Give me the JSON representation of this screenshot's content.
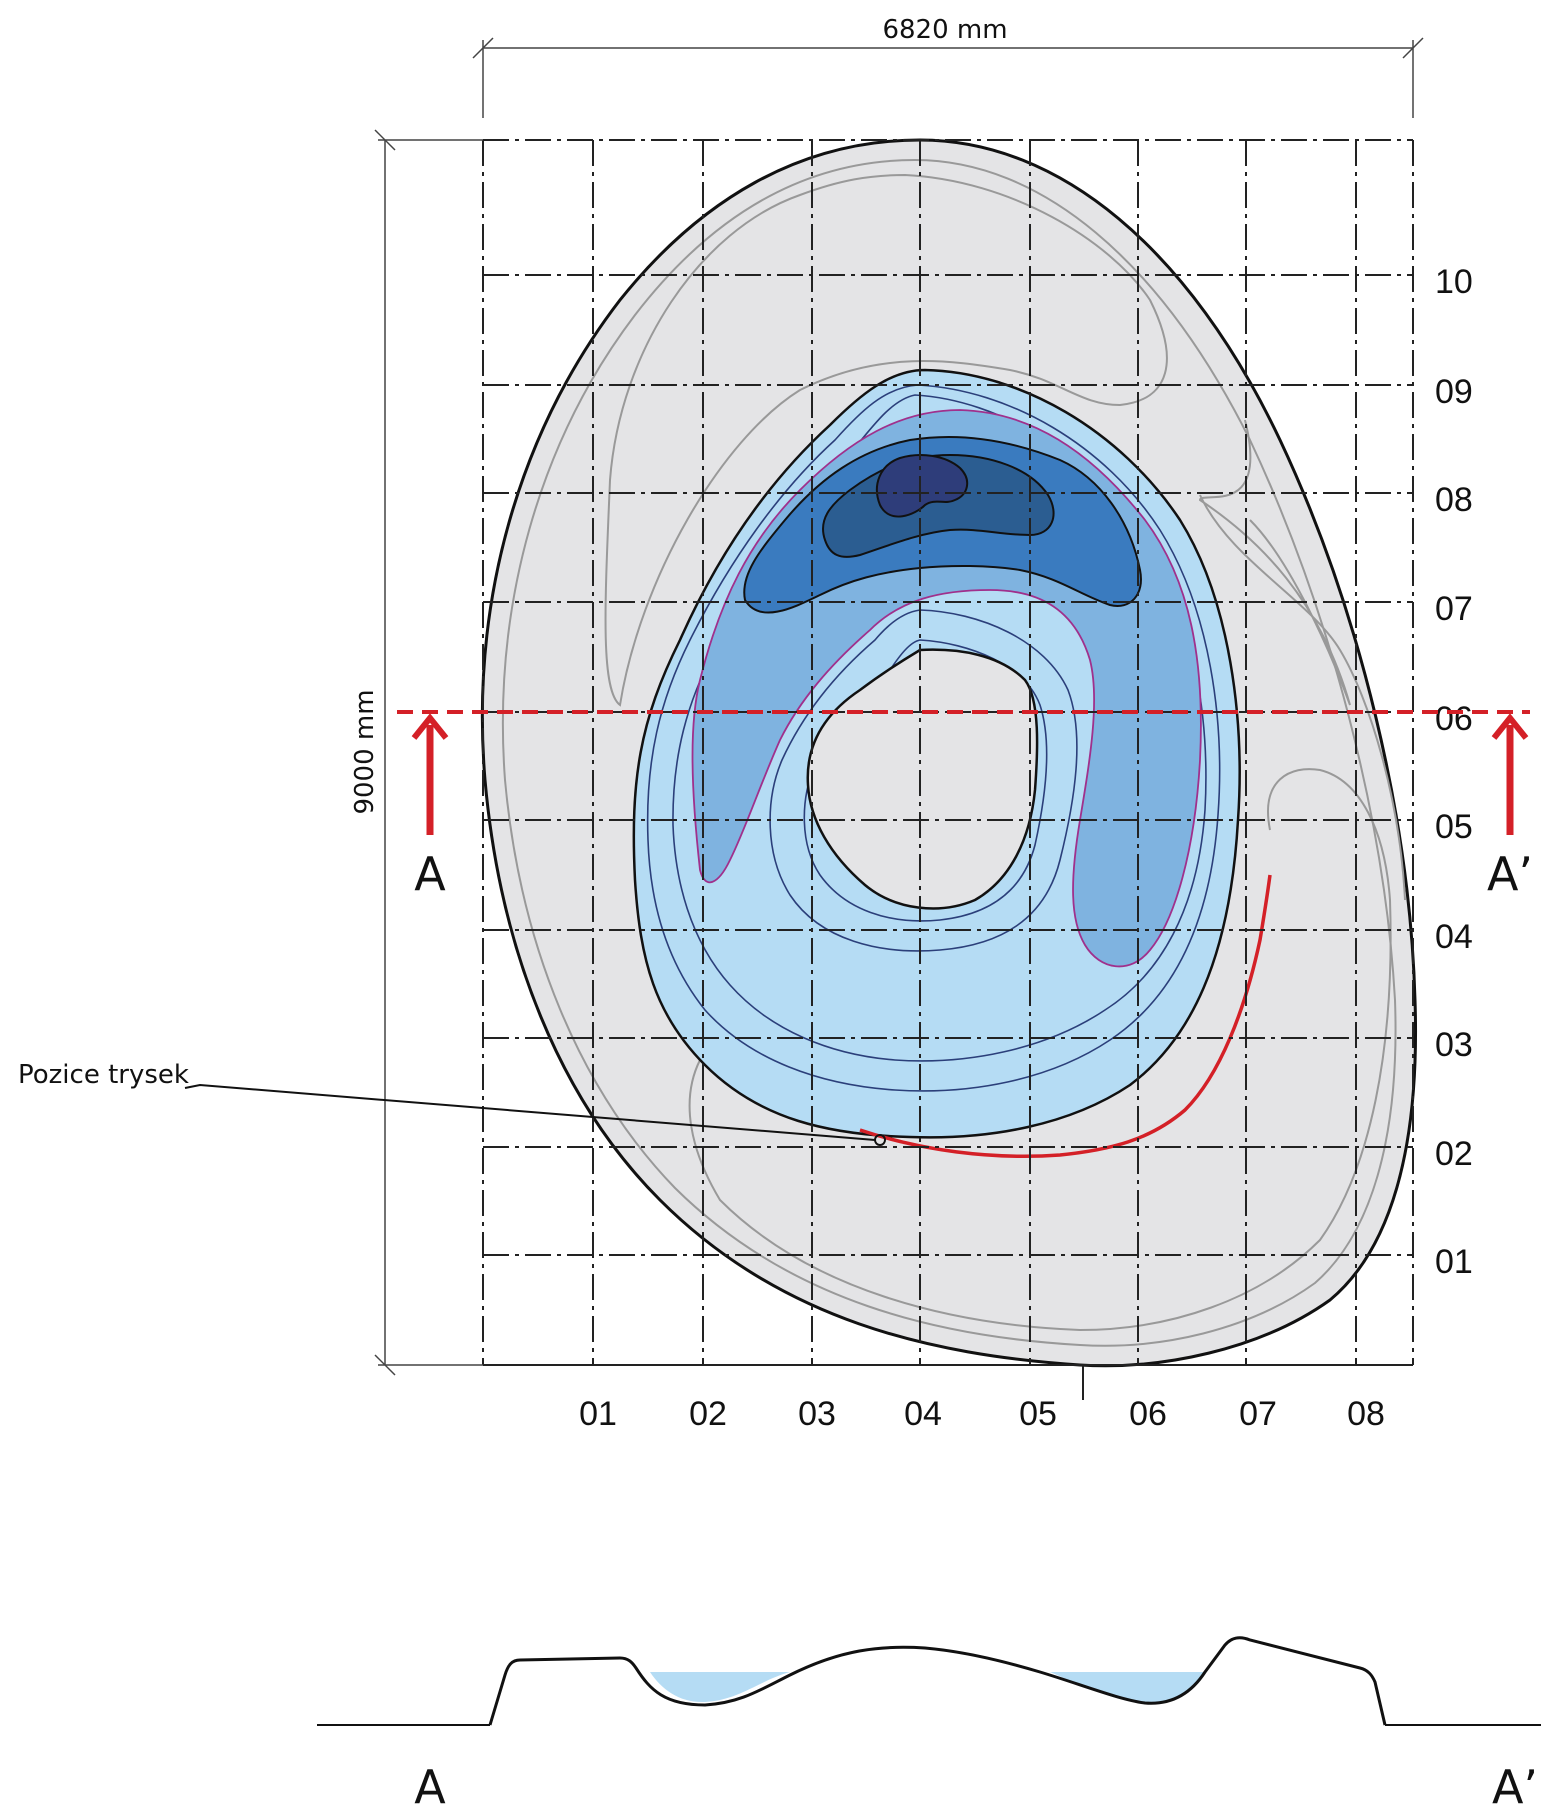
{
  "dimensions": {
    "width_label": "6820 mm",
    "height_label": "9000 mm"
  },
  "grid": {
    "x_labels": [
      "01",
      "02",
      "03",
      "04",
      "05",
      "06",
      "07",
      "08"
    ],
    "y_labels": [
      "10",
      "09",
      "08",
      "07",
      "06",
      "05",
      "04",
      "03",
      "02",
      "01"
    ]
  },
  "section": {
    "left_marker": "A",
    "right_marker": "A’",
    "color": "#d42027"
  },
  "annotation": {
    "nozzle_label": "Pozice trysek"
  },
  "colors": {
    "terrain": "#e4e4e6",
    "water_light": "#b5dcf4",
    "water_mid": "#7fb3e0",
    "water_deep": "#3a7bbf",
    "water_darker": "#2b5d91",
    "water_darkest": "#2e3d7a",
    "isoline_purple": "#a0308c",
    "grid": "#222222"
  }
}
